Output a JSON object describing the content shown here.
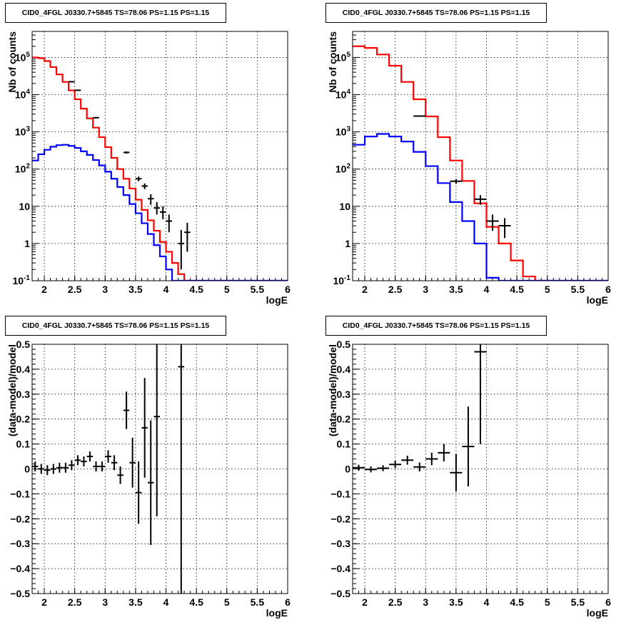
{
  "panels": [
    {
      "title": "CID0_4FGL J0330.7+5845 TS=78.06 PS=1.15 PS=1.15",
      "xlabel": "logE",
      "ylabel": "Nb of counts"
    },
    {
      "title": "CID0_4FGL J0330.7+5845 TS=78.06 PS=1.15 PS=1.15",
      "xlabel": "logE",
      "ylabel": "Nb of counts"
    },
    {
      "title": "CID0_4FGL J0330.7+5845 TS=78.06 PS=1.15 PS=1.15",
      "xlabel": "logE",
      "ylabel": "(data-model)/model"
    },
    {
      "title": "CID0_4FGL J0330.7+5845 TS=78.06 PS=1.15 PS=1.15",
      "xlabel": "logE",
      "ylabel": "(data-model)/model"
    }
  ],
  "chart_data": [
    {
      "type": "line",
      "title": "CID0_4FGL J0330.7+5845 TS=78.06 PS=1.15 PS=1.15",
      "xlabel": "logE",
      "ylabel": "Nb of counts",
      "xlim": [
        1.8,
        6
      ],
      "ylim": [
        0.1,
        500000
      ],
      "yscale": "log",
      "grid": true,
      "x_ticks": [
        "2",
        "2.5",
        "3",
        "3.5",
        "4",
        "4.5",
        "5",
        "5.5",
        "6"
      ],
      "y_ticks": [
        "10^{-1}",
        "1",
        "10",
        "10^{2}",
        "10^{3}",
        "10^{4}",
        "10^{5}"
      ],
      "bin_edges": [
        1.8,
        1.9,
        2.0,
        2.1,
        2.2,
        2.3,
        2.4,
        2.5,
        2.6,
        2.7,
        2.8,
        2.9,
        3.0,
        3.1,
        3.2,
        3.3,
        3.4,
        3.5,
        3.6,
        3.7,
        3.8,
        3.9,
        4.0,
        4.1,
        4.2,
        4.3,
        4.4,
        4.5,
        4.6,
        4.7,
        4.8,
        4.9,
        5.0,
        5.1,
        5.2,
        5.3,
        5.4,
        5.5,
        5.6,
        5.7,
        5.8,
        5.9,
        6.0
      ],
      "series": [
        {
          "color": "#ff0000",
          "style": "step",
          "values": [
            100000,
            95000,
            80000,
            55000,
            35000,
            22000,
            13000,
            7500,
            4200,
            2300,
            1300,
            720,
            390,
            200,
            100,
            55,
            30,
            15,
            8,
            4.2,
            2.2,
            1.1,
            0.6,
            0.3,
            0.15,
            0.1,
            0.1,
            0.1,
            0.1,
            0.1,
            0.1,
            0.1,
            0.1,
            0.1,
            0.1,
            0.1,
            0.1,
            0.1,
            0.1,
            0.1,
            0.1,
            0.1
          ]
        },
        {
          "color": "#0000ff",
          "style": "step",
          "values": [
            170,
            250,
            330,
            400,
            440,
            450,
            420,
            370,
            300,
            240,
            175,
            125,
            85,
            55,
            33,
            20,
            11.5,
            6.5,
            3.5,
            1.8,
            0.9,
            0.45,
            0.2,
            0.1,
            0.1,
            0.1,
            0.1,
            0.1,
            0.1,
            0.1,
            0.1,
            0.1,
            0.1,
            0.1,
            0.1,
            0.1,
            0.1,
            0.1,
            0.1,
            0.1,
            0.1,
            0.1
          ]
        },
        {
          "color": "#000000",
          "style": "errorbar",
          "points": [
            {
              "x": 2.45,
              "y": 22200,
              "lo": 21900,
              "hi": 22500
            },
            {
              "x": 2.55,
              "y": 13100,
              "lo": 12900,
              "hi": 13300
            },
            {
              "x": 2.85,
              "y": 2400,
              "lo": 2300,
              "hi": 2500
            },
            {
              "x": 3.35,
              "y": 280,
              "lo": 260,
              "hi": 300
            },
            {
              "x": 3.55,
              "y": 55,
              "lo": 47,
              "hi": 63
            },
            {
              "x": 3.65,
              "y": 35,
              "lo": 29,
              "hi": 41
            },
            {
              "x": 3.75,
              "y": 16,
              "lo": 11,
              "hi": 21
            },
            {
              "x": 3.85,
              "y": 9,
              "lo": 6,
              "hi": 13
            },
            {
              "x": 3.95,
              "y": 7,
              "lo": 4.5,
              "hi": 10
            },
            {
              "x": 4.05,
              "y": 4,
              "lo": 2,
              "hi": 6
            },
            {
              "x": 4.25,
              "y": 1,
              "lo": 0.2,
              "hi": 2.3
            },
            {
              "x": 4.35,
              "y": 2,
              "lo": 0.6,
              "hi": 3.6
            }
          ]
        }
      ]
    },
    {
      "type": "line",
      "title": "CID0_4FGL J0330.7+5845 TS=78.06 PS=1.15 PS=1.15",
      "xlabel": "logE",
      "ylabel": "Nb of counts",
      "xlim": [
        1.8,
        6
      ],
      "ylim": [
        0.1,
        500000
      ],
      "yscale": "log",
      "grid": true,
      "x_ticks": [
        "2",
        "2.5",
        "3",
        "3.5",
        "4",
        "4.5",
        "5",
        "5.5",
        "6"
      ],
      "y_ticks": [
        "10^{-1}",
        "1",
        "10",
        "10^{2}",
        "10^{3}",
        "10^{4}",
        "10^{5}"
      ],
      "bin_edges": [
        1.8,
        2.0,
        2.2,
        2.4,
        2.6,
        2.8,
        3.0,
        3.2,
        3.4,
        3.6,
        3.8,
        4.0,
        4.2,
        4.4,
        4.6,
        4.8,
        5.0,
        5.2,
        5.4,
        5.6,
        5.8,
        6.0
      ],
      "series": [
        {
          "color": "#ff0000",
          "style": "step",
          "values": [
            200000,
            180000,
            120000,
            60000,
            22000,
            7500,
            2600,
            720,
            170,
            48,
            12,
            2.8,
            1.0,
            0.35,
            0.13,
            0.1,
            0.1,
            0.1,
            0.1,
            0.1,
            0.1
          ]
        },
        {
          "color": "#0000ff",
          "style": "step",
          "values": [
            450,
            750,
            880,
            750,
            550,
            290,
            120,
            42,
            13,
            4,
            1.0,
            0.12,
            0.1,
            0.1,
            0.1,
            0.1,
            0.1,
            0.1,
            0.1,
            0.1,
            0.1
          ]
        },
        {
          "color": "#000000",
          "style": "errorbar",
          "points": [
            {
              "x": 2.9,
              "y": 2650,
              "lo": 2550,
              "hi": 2750
            },
            {
              "x": 3.5,
              "y": 47,
              "lo": 40,
              "hi": 54
            },
            {
              "x": 3.9,
              "y": 15.5,
              "lo": 11,
              "hi": 20
            },
            {
              "x": 4.1,
              "y": 4,
              "lo": 2.2,
              "hi": 6
            },
            {
              "x": 4.3,
              "y": 3,
              "lo": 1.4,
              "hi": 4.8
            }
          ]
        }
      ]
    },
    {
      "type": "scatter",
      "title": "CID0_4FGL J0330.7+5845 TS=78.06 PS=1.15 PS=1.15",
      "xlabel": "logE",
      "ylabel": "(data-model)/model",
      "xlim": [
        1.8,
        6
      ],
      "ylim": [
        -0.5,
        0.5
      ],
      "grid": true,
      "x_ticks": [
        "2",
        "2.5",
        "3",
        "3.5",
        "4",
        "4.5",
        "5",
        "5.5",
        "6"
      ],
      "y_ticks": [
        "−0.5",
        "−0.4",
        "−0.3",
        "−0.2",
        "−0.1",
        "0",
        "0.1",
        "0.2",
        "0.3",
        "0.4",
        "0.5"
      ],
      "series": [
        {
          "color": "#000000",
          "style": "errorbar",
          "points": [
            {
              "x": 1.85,
              "y": 0.01,
              "err": 0.02
            },
            {
              "x": 1.95,
              "y": 0.0,
              "err": 0.02
            },
            {
              "x": 2.05,
              "y": -0.005,
              "err": 0.02
            },
            {
              "x": 2.15,
              "y": 0.0,
              "err": 0.02
            },
            {
              "x": 2.25,
              "y": 0.005,
              "err": 0.02
            },
            {
              "x": 2.35,
              "y": 0.005,
              "err": 0.02
            },
            {
              "x": 2.45,
              "y": 0.015,
              "err": 0.02
            },
            {
              "x": 2.55,
              "y": 0.035,
              "err": 0.02
            },
            {
              "x": 2.65,
              "y": 0.03,
              "err": 0.02
            },
            {
              "x": 2.75,
              "y": 0.05,
              "err": 0.02
            },
            {
              "x": 2.85,
              "y": 0.01,
              "err": 0.02
            },
            {
              "x": 2.95,
              "y": 0.01,
              "err": 0.02
            },
            {
              "x": 3.05,
              "y": 0.05,
              "err": 0.025
            },
            {
              "x": 3.15,
              "y": 0.025,
              "err": 0.03
            },
            {
              "x": 3.25,
              "y": -0.025,
              "err": 0.035
            },
            {
              "x": 3.35,
              "y": 0.235,
              "err": 0.075
            },
            {
              "x": 3.45,
              "y": 0.025,
              "err": 0.1
            },
            {
              "x": 3.55,
              "y": -0.095,
              "err": 0.125
            },
            {
              "x": 3.65,
              "y": 0.165,
              "err": 0.2
            },
            {
              "x": 3.75,
              "y": -0.055,
              "err": 0.25
            },
            {
              "x": 3.85,
              "y": 0.21,
              "err": 0.4
            },
            {
              "x": 4.25,
              "y": 0.41,
              "err": 0.95
            }
          ]
        }
      ]
    },
    {
      "type": "scatter",
      "title": "CID0_4FGL J0330.7+5845 TS=78.06 PS=1.15 PS=1.15",
      "xlabel": "logE",
      "ylabel": "(data-model)/model",
      "xlim": [
        1.8,
        6
      ],
      "ylim": [
        -0.5,
        0.5
      ],
      "grid": true,
      "x_ticks": [
        "2",
        "2.5",
        "3",
        "3.5",
        "4",
        "4.5",
        "5",
        "5.5",
        "6"
      ],
      "y_ticks": [
        "−0.5",
        "−0.4",
        "−0.3",
        "−0.2",
        "−0.1",
        "0",
        "0.1",
        "0.2",
        "0.3",
        "0.4",
        "0.5"
      ],
      "series": [
        {
          "color": "#000000",
          "style": "errorbar",
          "points": [
            {
              "x": 1.9,
              "y": 0.005,
              "err": 0.012
            },
            {
              "x": 2.1,
              "y": -0.002,
              "err": 0.012
            },
            {
              "x": 2.3,
              "y": 0.003,
              "err": 0.012
            },
            {
              "x": 2.5,
              "y": 0.018,
              "err": 0.015
            },
            {
              "x": 2.7,
              "y": 0.035,
              "err": 0.018
            },
            {
              "x": 2.9,
              "y": 0.008,
              "err": 0.018
            },
            {
              "x": 3.1,
              "y": 0.04,
              "err": 0.025
            },
            {
              "x": 3.3,
              "y": 0.065,
              "err": 0.035
            },
            {
              "x": 3.5,
              "y": -0.015,
              "err": 0.075
            },
            {
              "x": 3.7,
              "y": 0.09,
              "err": 0.16
            },
            {
              "x": 3.9,
              "y": 0.47,
              "err": 0.37
            }
          ]
        }
      ]
    }
  ]
}
